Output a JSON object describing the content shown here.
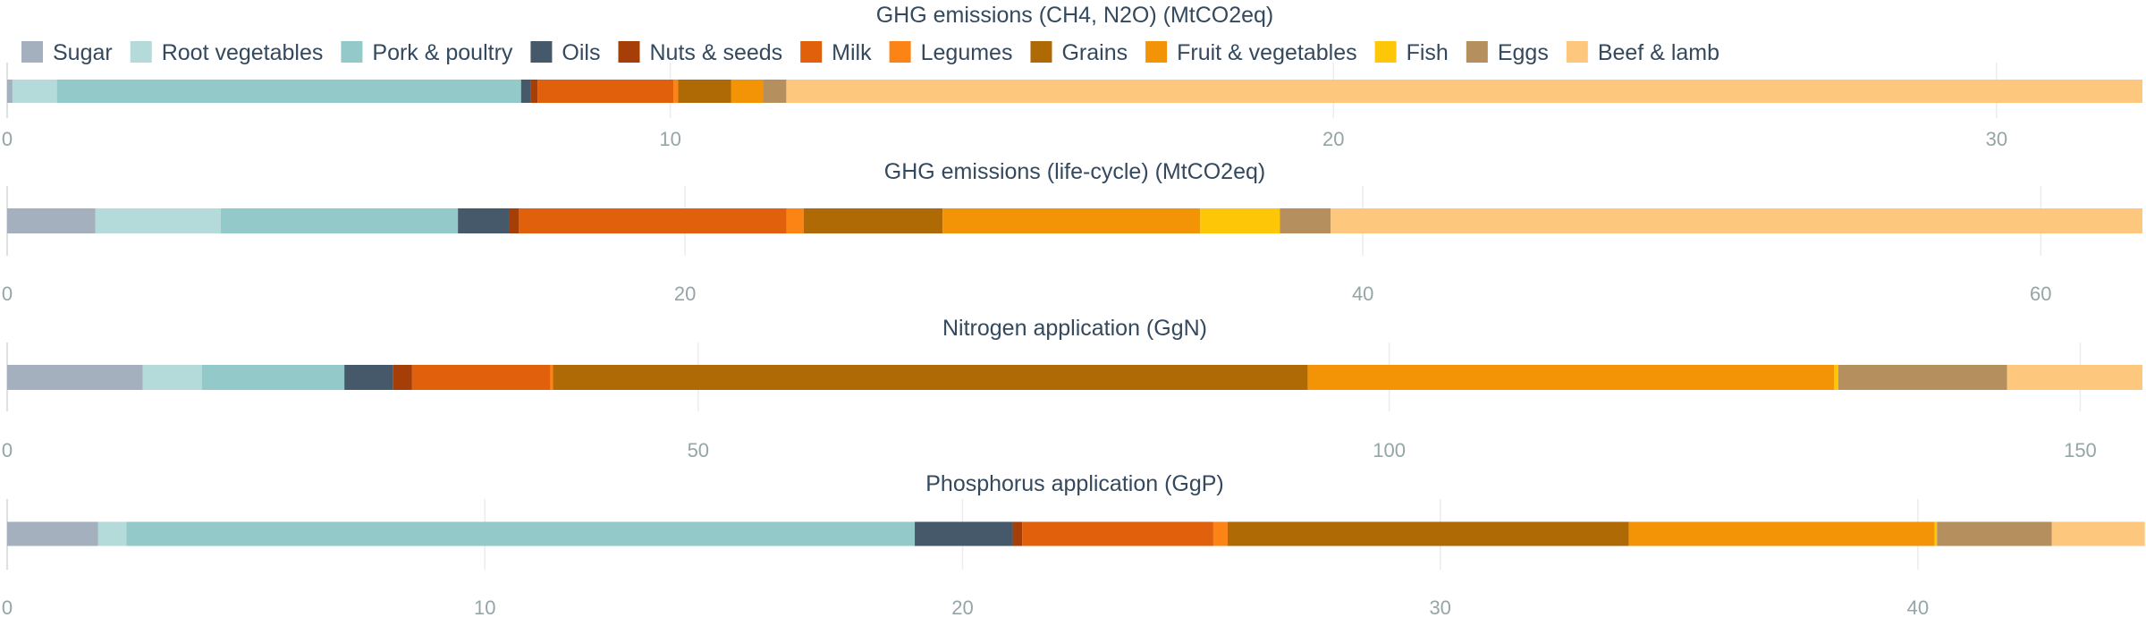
{
  "legend": {
    "items": [
      {
        "name": "Sugar",
        "color": "#a4b0bd"
      },
      {
        "name": "Root vegetables",
        "color": "#b5dada"
      },
      {
        "name": "Pork & poultry",
        "color": "#94c9c9"
      },
      {
        "name": "Oils",
        "color": "#45596b"
      },
      {
        "name": "Nuts & seeds",
        "color": "#a63f07"
      },
      {
        "name": "Milk",
        "color": "#e1600c"
      },
      {
        "name": "Legumes",
        "color": "#fc8415"
      },
      {
        "name": "Grains",
        "color": "#b06a05"
      },
      {
        "name": "Fruit & vegetables",
        "color": "#f39407"
      },
      {
        "name": "Fish",
        "color": "#fdc708"
      },
      {
        "name": "Eggs",
        "color": "#b58f5e"
      },
      {
        "name": "Beef & lamb",
        "color": "#fdc77e"
      }
    ]
  },
  "chart_data": [
    {
      "type": "bar",
      "orientation": "horizontal",
      "stacked": true,
      "title": "GHG emissions (CH4, N2O) (MtCO2eq)",
      "xlim": [
        0,
        32.2
      ],
      "ticks": [
        0,
        10,
        20,
        30
      ],
      "grid": true,
      "series": [
        {
          "name": "Sugar",
          "value": 0.08
        },
        {
          "name": "Root vegetables",
          "value": 0.67
        },
        {
          "name": "Pork & poultry",
          "value": 7.0
        },
        {
          "name": "Oils",
          "value": 0.15
        },
        {
          "name": "Nuts & seeds",
          "value": 0.1
        },
        {
          "name": "Milk",
          "value": 2.05
        },
        {
          "name": "Legumes",
          "value": 0.07
        },
        {
          "name": "Grains",
          "value": 0.8
        },
        {
          "name": "Fruit & vegetables",
          "value": 0.48
        },
        {
          "name": "Fish",
          "value": 0.0
        },
        {
          "name": "Eggs",
          "value": 0.35
        },
        {
          "name": "Beef & lamb",
          "value": 20.45
        }
      ]
    },
    {
      "type": "bar",
      "orientation": "horizontal",
      "stacked": true,
      "title": "GHG emissions (life-cycle) (MtCO2eq)",
      "xlim": [
        0,
        63
      ],
      "ticks": [
        0,
        20,
        40,
        60
      ],
      "grid": true,
      "series": [
        {
          "name": "Sugar",
          "value": 2.6
        },
        {
          "name": "Root vegetables",
          "value": 3.7
        },
        {
          "name": "Pork & poultry",
          "value": 7.0
        },
        {
          "name": "Oils",
          "value": 1.5
        },
        {
          "name": "Nuts & seeds",
          "value": 0.3
        },
        {
          "name": "Milk",
          "value": 7.9
        },
        {
          "name": "Legumes",
          "value": 0.5
        },
        {
          "name": "Grains",
          "value": 4.1
        },
        {
          "name": "Fruit & vegetables",
          "value": 7.6
        },
        {
          "name": "Fish",
          "value": 2.35
        },
        {
          "name": "Eggs",
          "value": 1.5
        },
        {
          "name": "Beef & lamb",
          "value": 23.95
        }
      ]
    },
    {
      "type": "bar",
      "orientation": "horizontal",
      "stacked": true,
      "title": "Nitrogen application (GgN)",
      "xlim": [
        0,
        154.5
      ],
      "ticks": [
        0,
        50,
        100,
        150
      ],
      "grid": true,
      "series": [
        {
          "name": "Sugar",
          "value": 9.8
        },
        {
          "name": "Root vegetables",
          "value": 4.3
        },
        {
          "name": "Pork & poultry",
          "value": 10.3
        },
        {
          "name": "Oils",
          "value": 3.5
        },
        {
          "name": "Nuts & seeds",
          "value": 1.4
        },
        {
          "name": "Milk",
          "value": 10.0
        },
        {
          "name": "Legumes",
          "value": 0.2
        },
        {
          "name": "Grains",
          "value": 54.6
        },
        {
          "name": "Fruit & vegetables",
          "value": 38.1
        },
        {
          "name": "Fish",
          "value": 0.3
        },
        {
          "name": "Eggs",
          "value": 12.2
        },
        {
          "name": "Beef & lamb",
          "value": 9.8
        }
      ]
    },
    {
      "type": "bar",
      "orientation": "horizontal",
      "stacked": true,
      "title": "Phosphorus application (GgP)",
      "xlim": [
        0,
        44.7
      ],
      "ticks": [
        0,
        10,
        20,
        30,
        40
      ],
      "grid": true,
      "series": [
        {
          "name": "Sugar",
          "value": 1.9
        },
        {
          "name": "Root vegetables",
          "value": 0.6
        },
        {
          "name": "Pork & poultry",
          "value": 16.5
        },
        {
          "name": "Oils",
          "value": 2.05
        },
        {
          "name": "Nuts & seeds",
          "value": 0.2
        },
        {
          "name": "Milk",
          "value": 4.0
        },
        {
          "name": "Legumes",
          "value": 0.3
        },
        {
          "name": "Grains",
          "value": 8.4
        },
        {
          "name": "Fruit & vegetables",
          "value": 6.4
        },
        {
          "name": "Fish",
          "value": 0.05
        },
        {
          "name": "Eggs",
          "value": 2.4
        },
        {
          "name": "Beef & lamb",
          "value": 1.95
        }
      ]
    }
  ]
}
